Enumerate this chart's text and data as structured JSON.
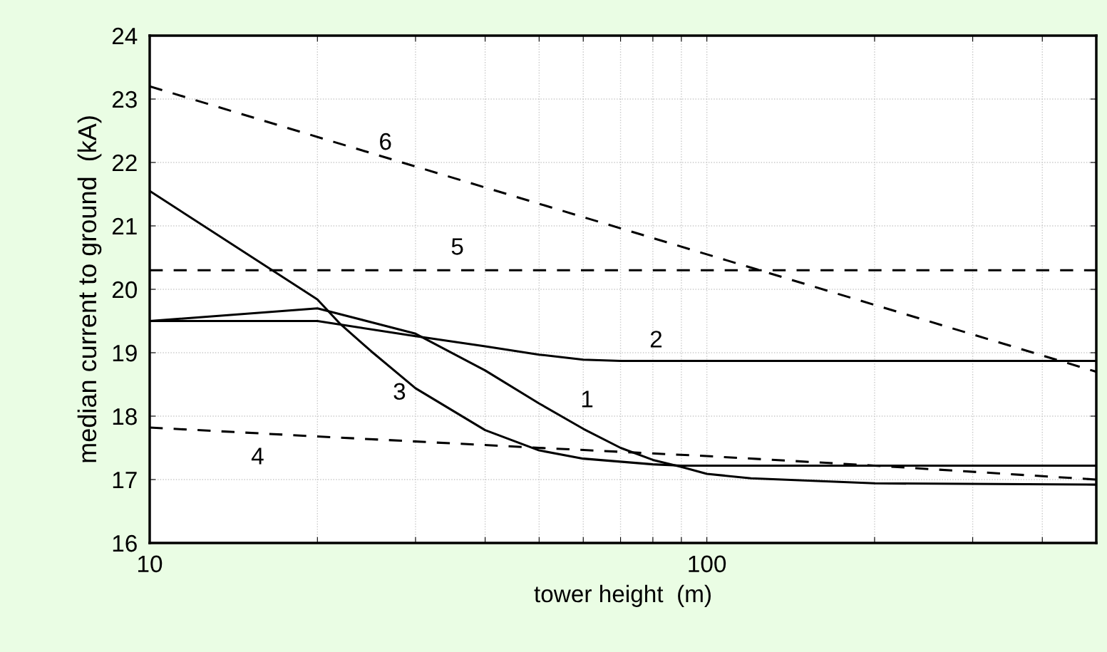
{
  "chart_data": {
    "type": "line",
    "xlabel": "tower height  (m)",
    "ylabel": "median current to ground  (kA)",
    "log": "x",
    "grid": true,
    "legend": false,
    "marker": "none",
    "xlim": [
      10,
      500
    ],
    "ylim": [
      16,
      24
    ],
    "xticks": [
      10,
      {
        "value": 20,
        "label": null
      },
      {
        "value": 30,
        "label": null
      },
      {
        "value": 40,
        "label": null
      },
      {
        "value": 50,
        "label": null
      },
      {
        "value": 60,
        "label": null
      },
      {
        "value": 70,
        "label": null
      },
      {
        "value": 80,
        "label": null
      },
      {
        "value": 90,
        "label": null
      },
      100,
      {
        "value": 200,
        "label": null
      },
      {
        "value": 300,
        "label": null
      },
      {
        "value": 400,
        "label": null
      },
      {
        "value": 500,
        "label": null
      }
    ],
    "yticks": [
      16,
      17,
      18,
      19,
      20,
      21,
      22,
      23,
      24
    ],
    "series": [
      {
        "name": "1",
        "color": "#000000",
        "line_style": "solid",
        "x": [
          10,
          20,
          30,
          40,
          50,
          60,
          70,
          80,
          90,
          100,
          120,
          200,
          500
        ],
        "values": [
          19.5,
          19.7,
          19.3,
          18.72,
          18.2,
          17.8,
          17.5,
          17.31,
          17.2,
          17.09,
          17.02,
          16.94,
          16.92
        ]
      },
      {
        "name": "2",
        "color": "#000000",
        "line_style": "solid",
        "x": [
          10,
          20,
          30,
          40,
          50,
          60,
          70,
          500
        ],
        "values": [
          19.5,
          19.5,
          19.26,
          19.1,
          18.97,
          18.89,
          18.87,
          18.87
        ]
      },
      {
        "name": "3",
        "color": "#000000",
        "line_style": "solid",
        "x": [
          10,
          20,
          22,
          25,
          30,
          40,
          50,
          60,
          80,
          90,
          500
        ],
        "values": [
          21.55,
          19.84,
          19.45,
          19.02,
          18.44,
          17.78,
          17.46,
          17.33,
          17.24,
          17.22,
          17.22
        ]
      },
      {
        "name": "4",
        "color": "#000000",
        "line_style": "dashed",
        "x": [
          10,
          20,
          50,
          100,
          200,
          500
        ],
        "values": [
          17.82,
          17.68,
          17.5,
          17.37,
          17.22,
          17.0
        ]
      },
      {
        "name": "5",
        "color": "#000000",
        "line_style": "dashed",
        "x": [
          10,
          500
        ],
        "values": [
          20.3,
          20.3
        ]
      },
      {
        "name": "6",
        "color": "#000000",
        "line_style": "dashed",
        "x": [
          10,
          500
        ],
        "values": [
          23.2,
          18.7
        ]
      }
    ]
  }
}
